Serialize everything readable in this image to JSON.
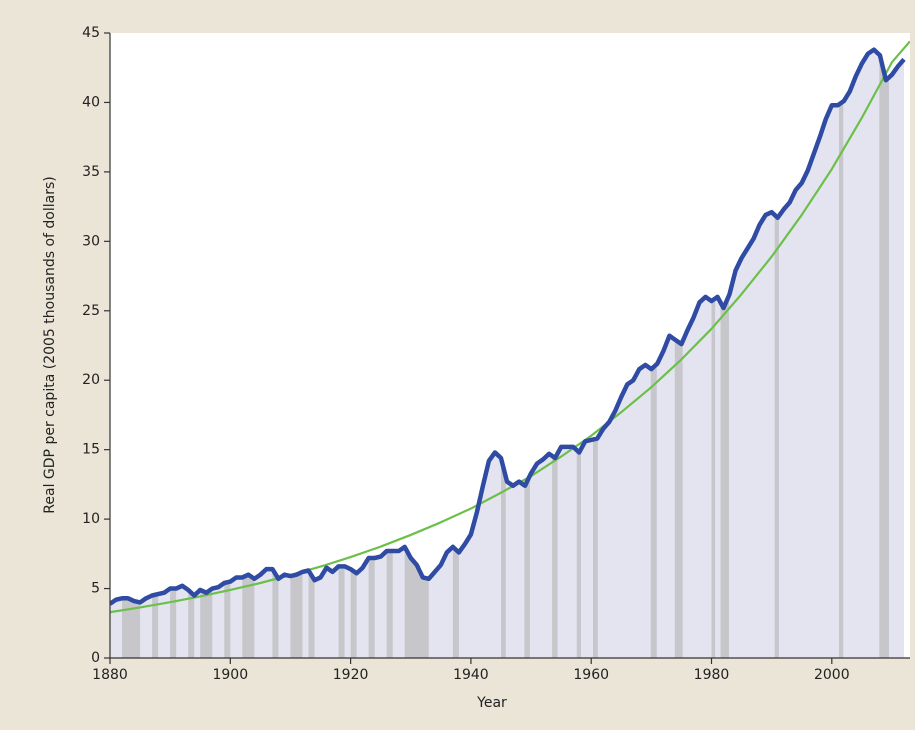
{
  "chart_data": {
    "type": "line",
    "xlabel": "Year",
    "ylabel": "Real GDP per capita (2005 thousands of dollars)",
    "xlim": [
      1880,
      2013
    ],
    "xticks": [
      1880,
      1900,
      1920,
      1940,
      1960,
      1980,
      2000
    ],
    "ylim": [
      0,
      45
    ],
    "yticks": [
      0,
      5,
      10,
      15,
      20,
      25,
      30,
      35,
      40,
      45
    ],
    "area_color": "#e3e4ef",
    "shade_color": "#c6c6cb",
    "shaded_periods": [
      [
        1882,
        1885
      ],
      [
        1887,
        1888
      ],
      [
        1890,
        1891
      ],
      [
        1893,
        1894
      ],
      [
        1895,
        1897
      ],
      [
        1899,
        1900
      ],
      [
        1902,
        1904
      ],
      [
        1907,
        1908
      ],
      [
        1910,
        1912
      ],
      [
        1913,
        1914
      ],
      [
        1918,
        1919
      ],
      [
        1920,
        1921
      ],
      [
        1923,
        1924
      ],
      [
        1926,
        1927
      ],
      [
        1929,
        1933
      ],
      [
        1937,
        1938
      ],
      [
        1945,
        1945.8
      ],
      [
        1948.9,
        1949.8
      ],
      [
        1953.5,
        1954.4
      ],
      [
        1957.6,
        1958.3
      ],
      [
        1960.3,
        1961.1
      ],
      [
        1969.9,
        1970.9
      ],
      [
        1973.9,
        1975.2
      ],
      [
        1980,
        1980.6
      ],
      [
        1981.5,
        1982.9
      ],
      [
        1990.5,
        1991.2
      ],
      [
        2001.2,
        2001.9
      ],
      [
        2007.9,
        2009.5
      ]
    ],
    "series": [
      {
        "color": "#2f4ba3",
        "width": 4.5,
        "area": true,
        "x": [
          1880,
          1881,
          1882,
          1883,
          1884,
          1885,
          1886,
          1887,
          1888,
          1889,
          1890,
          1891,
          1892,
          1893,
          1894,
          1895,
          1896,
          1897,
          1898,
          1899,
          1900,
          1901,
          1902,
          1903,
          1904,
          1905,
          1906,
          1907,
          1908,
          1909,
          1910,
          1911,
          1912,
          1913,
          1914,
          1915,
          1916,
          1917,
          1918,
          1919,
          1920,
          1921,
          1922,
          1923,
          1924,
          1925,
          1926,
          1927,
          1928,
          1929,
          1930,
          1931,
          1932,
          1933,
          1934,
          1935,
          1936,
          1937,
          1938,
          1939,
          1940,
          1941,
          1942,
          1943,
          1944,
          1945,
          1946,
          1947,
          1948,
          1949,
          1950,
          1951,
          1952,
          1953,
          1954,
          1955,
          1956,
          1957,
          1958,
          1959,
          1960,
          1961,
          1962,
          1963,
          1964,
          1965,
          1966,
          1967,
          1968,
          1969,
          1970,
          1971,
          1972,
          1973,
          1974,
          1975,
          1976,
          1977,
          1978,
          1979,
          1980,
          1981,
          1982,
          1983,
          1984,
          1985,
          1986,
          1987,
          1988,
          1989,
          1990,
          1991,
          1992,
          1993,
          1994,
          1995,
          1996,
          1997,
          1998,
          1999,
          2000,
          2001,
          2002,
          2003,
          2004,
          2005,
          2006,
          2007,
          2008,
          2009,
          2010,
          2011,
          2012
        ],
        "values": [
          3.9,
          4.2,
          4.3,
          4.3,
          4.1,
          4.0,
          4.3,
          4.5,
          4.6,
          4.7,
          5.0,
          5.0,
          5.2,
          4.9,
          4.5,
          4.9,
          4.7,
          5.0,
          5.1,
          5.4,
          5.5,
          5.8,
          5.8,
          6.0,
          5.7,
          6.0,
          6.4,
          6.4,
          5.7,
          6.0,
          5.9,
          6.0,
          6.2,
          6.3,
          5.6,
          5.8,
          6.5,
          6.2,
          6.6,
          6.6,
          6.4,
          6.1,
          6.5,
          7.2,
          7.2,
          7.3,
          7.7,
          7.7,
          7.7,
          8.0,
          7.2,
          6.7,
          5.8,
          5.7,
          6.2,
          6.7,
          7.6,
          8.0,
          7.6,
          8.2,
          8.9,
          10.5,
          12.4,
          14.2,
          14.8,
          14.4,
          12.7,
          12.4,
          12.7,
          12.4,
          13.3,
          14.0,
          14.3,
          14.7,
          14.4,
          15.2,
          15.2,
          15.2,
          14.8,
          15.6,
          15.7,
          15.8,
          16.5,
          17.0,
          17.8,
          18.8,
          19.7,
          20.0,
          20.8,
          21.1,
          20.8,
          21.2,
          22.1,
          23.2,
          22.9,
          22.6,
          23.6,
          24.5,
          25.6,
          26.0,
          25.7,
          26.0,
          25.2,
          26.2,
          27.9,
          28.8,
          29.5,
          30.2,
          31.2,
          31.9,
          32.1,
          31.7,
          32.3,
          32.8,
          33.7,
          34.2,
          35.1,
          36.3,
          37.5,
          38.8,
          39.8,
          39.8,
          40.1,
          40.8,
          41.9,
          42.8,
          43.5,
          43.8,
          43.4,
          41.6,
          42.0,
          42.6,
          43.1
        ]
      },
      {
        "color": "#6cc04a",
        "width": 2.2,
        "x": [
          1880,
          1885,
          1890,
          1895,
          1900,
          1905,
          1910,
          1915,
          1920,
          1925,
          1930,
          1935,
          1940,
          1945,
          1950,
          1955,
          1960,
          1965,
          1970,
          1975,
          1980,
          1985,
          1990,
          1995,
          2000,
          2005,
          2010,
          2013
        ],
        "values": [
          3.3,
          3.64,
          4.02,
          4.43,
          4.9,
          5.4,
          5.97,
          6.58,
          7.27,
          8.02,
          8.86,
          9.77,
          10.76,
          11.9,
          13.1,
          14.5,
          16.0,
          17.7,
          19.5,
          21.5,
          23.7,
          26.2,
          28.9,
          31.9,
          35.2,
          38.9,
          42.9,
          44.4
        ]
      }
    ]
  }
}
